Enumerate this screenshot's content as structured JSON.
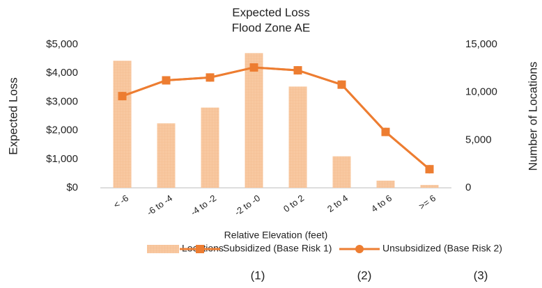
{
  "chart_data": {
    "type": "bar_line",
    "title": "Expected Loss",
    "subtitle": "Flood Zone AE",
    "y_label": "Expected Loss",
    "y2_label": "Number of Locations",
    "x_label": "Relative Elevation (feet)",
    "categories": [
      "< -6",
      "-6 to -4",
      "-4 to -2",
      "-2 to -0",
      "0 to 2",
      "2 to 4",
      "4 to 6",
      ">= 6"
    ],
    "series": [
      {
        "name": "Locations",
        "type": "bar",
        "axis": "y2",
        "color": "#f8c8a0",
        "values": [
          13300,
          6750,
          8400,
          14100,
          10600,
          3300,
          750,
          300
        ]
      },
      {
        "name": "Subsidized (Base Risk 1)",
        "type": "line",
        "marker": "square",
        "color": "#ed7d31",
        "values": [
          3200,
          3750,
          3850,
          4200,
          4100,
          3600,
          1950,
          650
        ]
      },
      {
        "name": "Unsubsidized (Base Risk 2)",
        "type": "line",
        "marker": "circle",
        "color": "#ed7d31",
        "values": [
          3200,
          3750,
          3850,
          4200,
          4100,
          3600,
          1950,
          650
        ]
      }
    ],
    "ylim": [
      0,
      5000
    ],
    "yticks": [
      {
        "value": 0,
        "label": "$0"
      },
      {
        "value": 1000,
        "label": "$1,000"
      },
      {
        "value": 2000,
        "label": "$2,000"
      },
      {
        "value": 3000,
        "label": "$3,000"
      },
      {
        "value": 4000,
        "label": "$4,000"
      },
      {
        "value": 5000,
        "label": "$5,000"
      }
    ],
    "y2lim": [
      0,
      15000
    ],
    "y2ticks": [
      0,
      {
        "value": 5000,
        "label": "5,000"
      },
      {
        "value": 10000,
        "label": "10,000"
      },
      {
        "value": 15000,
        "label": "15,000"
      }
    ],
    "annotations": [
      "(1)",
      "(2)",
      "(3)"
    ]
  }
}
